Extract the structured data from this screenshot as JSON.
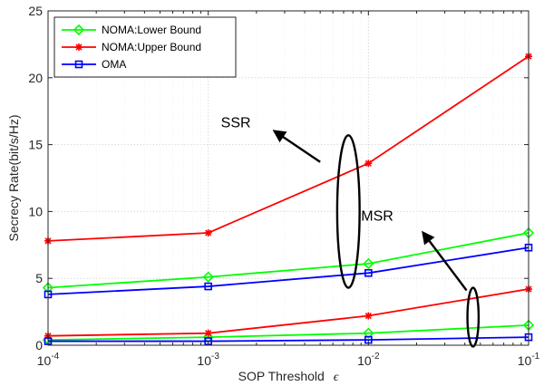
{
  "chart_data": {
    "type": "line",
    "xscale": "log",
    "xlabel": "SOP Threshold",
    "xlabel_symbol": "ϵ",
    "ylabel": "Secrecy Rate(bit/s/Hz)",
    "xlim": [
      0.0001,
      0.1
    ],
    "ylim": [
      0,
      25
    ],
    "x": [
      0.0001,
      0.001,
      0.01,
      0.1
    ],
    "x_tick_labels": [
      {
        "base": "10",
        "exp": "-4"
      },
      {
        "base": "10",
        "exp": "-3"
      },
      {
        "base": "10",
        "exp": "-2"
      },
      {
        "base": "10",
        "exp": "-1"
      }
    ],
    "y_ticks": [
      0,
      5,
      10,
      15,
      20,
      25
    ],
    "grid": true,
    "legend_position": "top-left",
    "series": [
      {
        "name": "NOMA:Lower Bound",
        "group": "SSR",
        "color": "#00ff00",
        "marker": "diamond",
        "values": [
          4.3,
          5.1,
          6.1,
          8.4
        ]
      },
      {
        "name": "NOMA:Upper Bound",
        "group": "SSR",
        "color": "#ff0000",
        "marker": "asterisk",
        "values": [
          7.8,
          8.4,
          13.6,
          21.6
        ]
      },
      {
        "name": "OMA",
        "group": "SSR",
        "color": "#0000ff",
        "marker": "square",
        "values": [
          3.8,
          4.4,
          5.4,
          7.3
        ]
      },
      {
        "name": "NOMA:Lower Bound",
        "group": "MSR",
        "color": "#00ff00",
        "marker": "diamond",
        "values": [
          0.4,
          0.6,
          0.9,
          1.5
        ]
      },
      {
        "name": "NOMA:Upper Bound",
        "group": "MSR",
        "color": "#ff0000",
        "marker": "asterisk",
        "values": [
          0.7,
          0.9,
          2.2,
          4.2
        ]
      },
      {
        "name": "OMA",
        "group": "MSR",
        "color": "#0000ff",
        "marker": "square",
        "values": [
          0.3,
          0.3,
          0.4,
          0.6
        ]
      }
    ],
    "legend": [
      {
        "name": "NOMA:Lower Bound",
        "color": "#00ff00",
        "marker": "diamond"
      },
      {
        "name": "NOMA:Upper Bound",
        "color": "#ff0000",
        "marker": "asterisk"
      },
      {
        "name": "OMA",
        "color": "#0000ff",
        "marker": "square"
      }
    ],
    "annotations": [
      {
        "text": "SSR",
        "ellipse_center": [
          0.0075,
          10.0
        ],
        "ellipse_dy": 5.7,
        "ellipse_dx_decades": 0.07,
        "label_at": [
          0.0012,
          16.3
        ],
        "arrow_from": [
          0.005,
          13.7
        ],
        "arrow_to": [
          0.0026,
          16.0
        ]
      },
      {
        "text": "MSR",
        "ellipse_center": [
          0.045,
          2.1
        ],
        "ellipse_dy": 2.2,
        "ellipse_dx_decades": 0.035,
        "label_at": [
          0.009,
          9.3
        ],
        "arrow_from": [
          0.041,
          4.1
        ],
        "arrow_to": [
          0.022,
          8.4
        ]
      }
    ]
  }
}
